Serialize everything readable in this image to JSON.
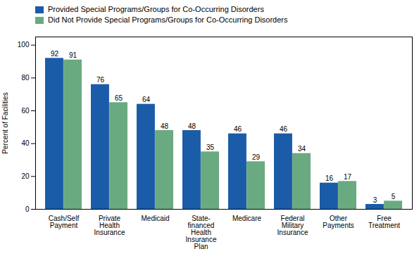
{
  "chart_data": {
    "type": "bar",
    "categories": [
      "Cash/Self\nPayment",
      "Private\nHealth\nInsurance",
      "Medicaid",
      "State-\nfinanced\nHealth\nInsurance\nPlan",
      "Medicare",
      "Federal\nMilitary\nInsurance",
      "Other\nPayments",
      "Free\nTreatment"
    ],
    "series": [
      {
        "name": "Provided Special Programs/Groups for Co-Occurring Disorders",
        "color": "#1a5ca8",
        "values": [
          92,
          76,
          64,
          48,
          46,
          46,
          16,
          3
        ]
      },
      {
        "name": "Did Not Provide Special Programs/Groups for Co-Occurring Disorders",
        "color": "#6aaa80",
        "values": [
          91,
          65,
          48,
          35,
          29,
          34,
          17,
          5
        ]
      }
    ],
    "ylabel": "Percent of Facilities",
    "ylim": [
      0,
      105
    ],
    "yticks": [
      0,
      20,
      40,
      60,
      80,
      100
    ],
    "grid": false,
    "data_labels": true,
    "legend": "upper left"
  }
}
